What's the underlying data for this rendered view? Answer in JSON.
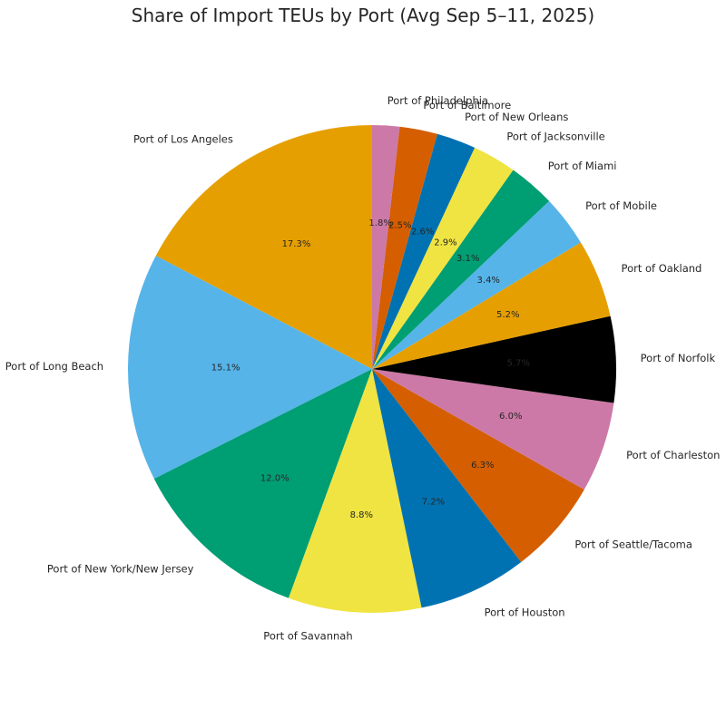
{
  "chart_data": {
    "type": "pie",
    "title": "Share of Import TEUs by Port (Avg Sep 5–11, 2025)",
    "start_angle_deg": 90,
    "direction": "counterclockwise",
    "slices": [
      {
        "label": "Port of Los Angeles",
        "value": 17.3,
        "pct_text": "17.3%",
        "color": "#E69F00"
      },
      {
        "label": "Port of Long Beach",
        "value": 15.1,
        "pct_text": "15.1%",
        "color": "#56B4E9"
      },
      {
        "label": "Port of New York/New Jersey",
        "value": 12.0,
        "pct_text": "12.0%",
        "color": "#009E73"
      },
      {
        "label": "Port of Savannah",
        "value": 8.8,
        "pct_text": "8.8%",
        "color": "#F0E442"
      },
      {
        "label": "Port of Houston",
        "value": 7.2,
        "pct_text": "7.2%",
        "color": "#0072B2"
      },
      {
        "label": "Port of Seattle/Tacoma",
        "value": 6.3,
        "pct_text": "6.3%",
        "color": "#D55E00"
      },
      {
        "label": "Port of Charleston",
        "value": 6.0,
        "pct_text": "6.0%",
        "color": "#CC79A7"
      },
      {
        "label": "Port of Norfolk",
        "value": 5.7,
        "pct_text": "5.7%",
        "color": "#000000"
      },
      {
        "label": "Port of Oakland",
        "value": 5.2,
        "pct_text": "5.2%",
        "color": "#E69F00"
      },
      {
        "label": "Port of Mobile",
        "value": 3.4,
        "pct_text": "3.4%",
        "color": "#56B4E9"
      },
      {
        "label": "Port of Miami",
        "value": 3.1,
        "pct_text": "3.1%",
        "color": "#009E73"
      },
      {
        "label": "Port of Jacksonville",
        "value": 2.9,
        "pct_text": "2.9%",
        "color": "#F0E442"
      },
      {
        "label": "Port of New Orleans",
        "value": 2.6,
        "pct_text": "2.6%",
        "color": "#0072B2"
      },
      {
        "label": "Port of Baltimore",
        "value": 2.5,
        "pct_text": "2.5%",
        "color": "#D55E00"
      },
      {
        "label": "Port of Philadelphia",
        "value": 1.8,
        "pct_text": "1.8%",
        "color": "#CC79A7"
      }
    ]
  }
}
